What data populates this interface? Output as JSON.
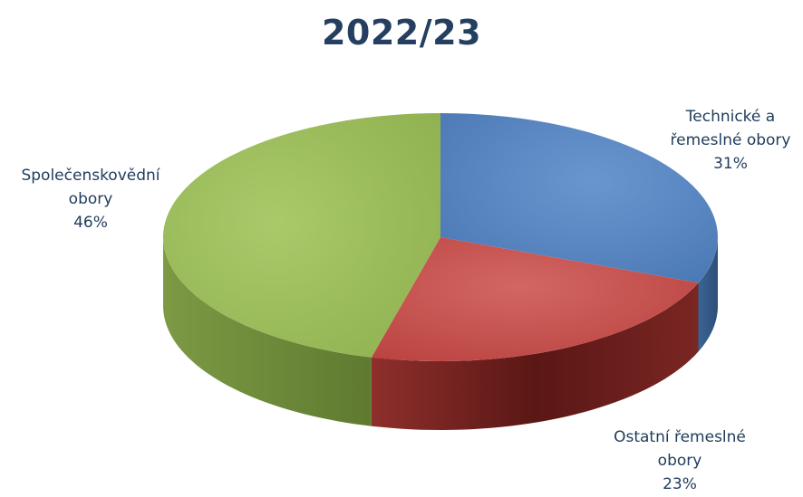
{
  "chart_data": {
    "type": "pie",
    "title": "2022/23",
    "slices": [
      {
        "label_lines": [
          "Technické a",
          "řemeslné obory"
        ],
        "percent_label": "31%",
        "value": 31,
        "color": "#4f81bd"
      },
      {
        "label_lines": [
          "Ostatní řemeslné",
          "obory"
        ],
        "percent_label": "23%",
        "value": 23,
        "color": "#c0504d"
      },
      {
        "label_lines": [
          "Společenskovědní",
          "obory"
        ],
        "percent_label": "46%",
        "value": 46,
        "color": "#9bbb59"
      }
    ],
    "three_d": true,
    "legend": "none"
  }
}
